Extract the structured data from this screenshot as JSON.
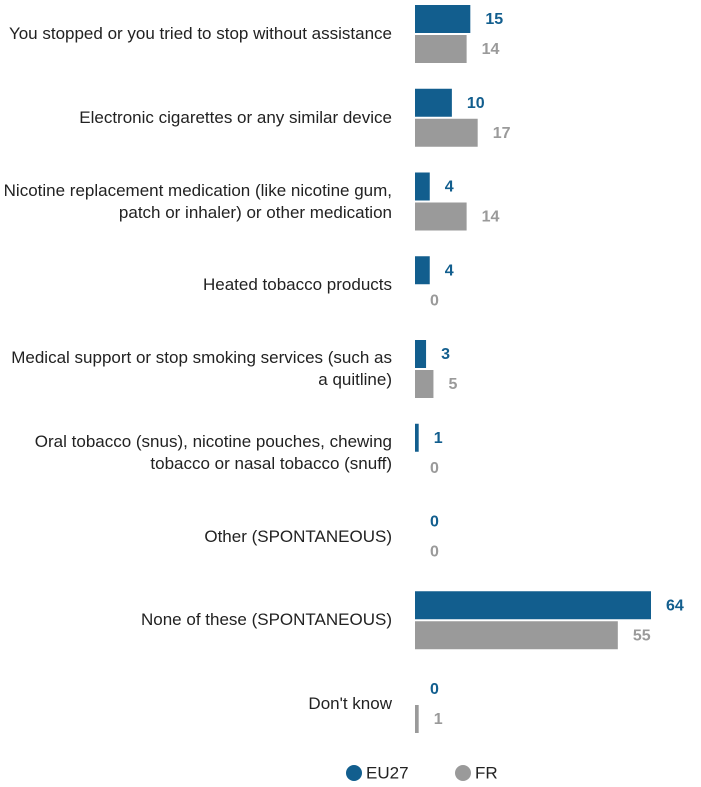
{
  "chart_data": {
    "type": "bar",
    "orientation": "horizontal",
    "categories": [
      "You stopped or you tried to stop without assistance",
      "Electronic cigarettes or any similar device",
      "Nicotine replacement medication (like nicotine gum, patch or inhaler) or other medication",
      "Heated tobacco products",
      "Medical support or stop smoking services (such as a quitline)",
      "Oral tobacco (snus), nicotine pouches, chewing tobacco or nasal tobacco (snuff)",
      "Other (SPONTANEOUS)",
      "None of these (SPONTANEOUS)",
      "Don't know"
    ],
    "series": [
      {
        "name": "EU27",
        "color": "#125e8e",
        "values": [
          15,
          10,
          4,
          4,
          3,
          1,
          0,
          64,
          0
        ]
      },
      {
        "name": "FR",
        "color": "#9a9a9a",
        "values": [
          14,
          17,
          14,
          0,
          5,
          0,
          0,
          55,
          1
        ]
      }
    ],
    "xlim": [
      0,
      64
    ]
  }
}
